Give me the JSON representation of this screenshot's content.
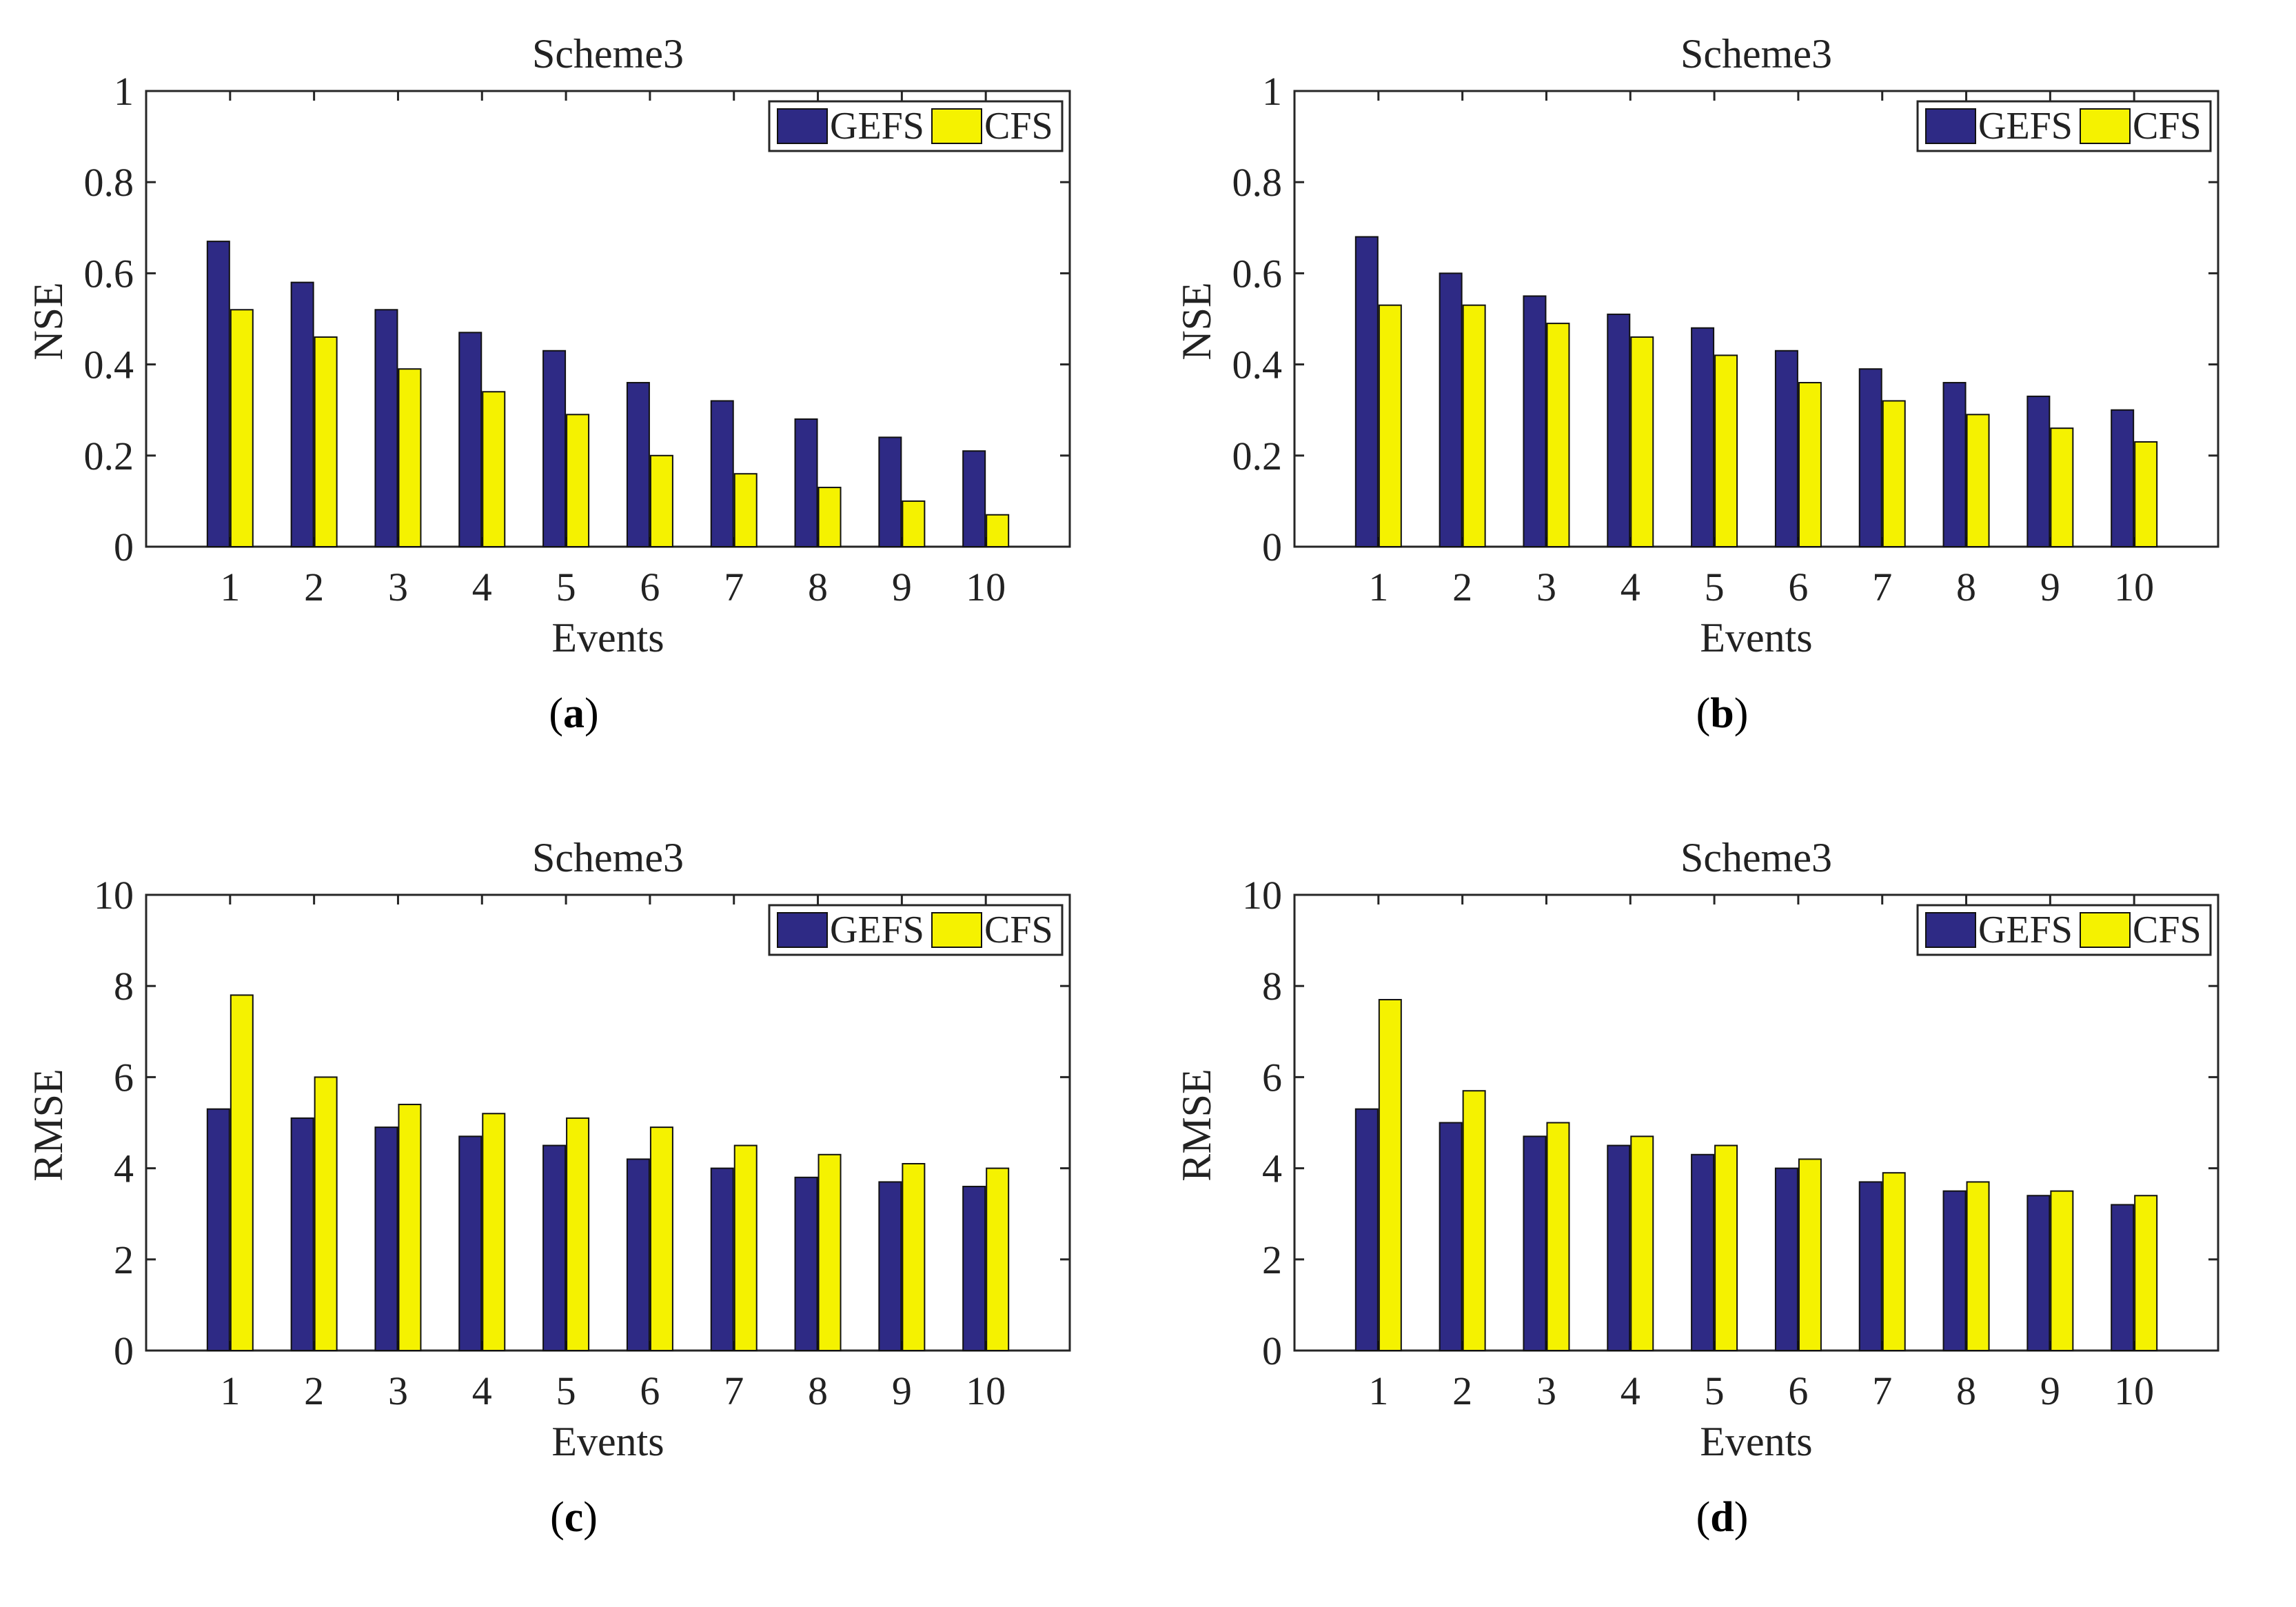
{
  "colors": {
    "gefs": "#2e2a85",
    "cfs": "#f5f200",
    "axis": "#262626",
    "text": "#222222"
  },
  "chart_data": [
    {
      "type": "bar",
      "panel_label": "a",
      "title": "Scheme3",
      "xlabel": "Events",
      "ylabel": "NSE",
      "categories": [
        "1",
        "2",
        "3",
        "4",
        "5",
        "6",
        "7",
        "8",
        "9",
        "10"
      ],
      "ylim": [
        0,
        1
      ],
      "yticks": [
        "0",
        "0.2",
        "0.4",
        "0.6",
        "0.8",
        "1"
      ],
      "yticks_values": [
        0,
        0.2,
        0.4,
        0.6,
        0.8,
        1
      ],
      "legend_position": "top-right",
      "series": [
        {
          "name": "GEFS",
          "values": [
            0.67,
            0.58,
            0.52,
            0.47,
            0.43,
            0.36,
            0.32,
            0.28,
            0.24,
            0.21
          ]
        },
        {
          "name": "CFS",
          "values": [
            0.52,
            0.46,
            0.39,
            0.34,
            0.29,
            0.2,
            0.16,
            0.13,
            0.1,
            0.07
          ]
        }
      ]
    },
    {
      "type": "bar",
      "panel_label": "b",
      "title": "Scheme3",
      "xlabel": "Events",
      "ylabel": "NSE",
      "categories": [
        "1",
        "2",
        "3",
        "4",
        "5",
        "6",
        "7",
        "8",
        "9",
        "10"
      ],
      "ylim": [
        0,
        1
      ],
      "yticks": [
        "0",
        "0.2",
        "0.4",
        "0.6",
        "0.8",
        "1"
      ],
      "yticks_values": [
        0,
        0.2,
        0.4,
        0.6,
        0.8,
        1
      ],
      "legend_position": "top-right",
      "series": [
        {
          "name": "GEFS",
          "values": [
            0.68,
            0.6,
            0.55,
            0.51,
            0.48,
            0.43,
            0.39,
            0.36,
            0.33,
            0.3
          ]
        },
        {
          "name": "CFS",
          "values": [
            0.53,
            0.53,
            0.49,
            0.46,
            0.42,
            0.36,
            0.32,
            0.29,
            0.26,
            0.23
          ]
        }
      ]
    },
    {
      "type": "bar",
      "panel_label": "c",
      "title": "Scheme3",
      "xlabel": "Events",
      "ylabel": "RMSE",
      "categories": [
        "1",
        "2",
        "3",
        "4",
        "5",
        "6",
        "7",
        "8",
        "9",
        "10"
      ],
      "ylim": [
        0,
        10
      ],
      "yticks": [
        "0",
        "2",
        "4",
        "6",
        "8",
        "10"
      ],
      "yticks_values": [
        0,
        2,
        4,
        6,
        8,
        10
      ],
      "legend_position": "top-right",
      "series": [
        {
          "name": "GEFS",
          "values": [
            5.3,
            5.1,
            4.9,
            4.7,
            4.5,
            4.2,
            4.0,
            3.8,
            3.7,
            3.6
          ]
        },
        {
          "name": "CFS",
          "values": [
            7.8,
            6.0,
            5.4,
            5.2,
            5.1,
            4.9,
            4.5,
            4.3,
            4.1,
            4.0
          ]
        }
      ]
    },
    {
      "type": "bar",
      "panel_label": "d",
      "title": "Scheme3",
      "xlabel": "Events",
      "ylabel": "RMSE",
      "categories": [
        "1",
        "2",
        "3",
        "4",
        "5",
        "6",
        "7",
        "8",
        "9",
        "10"
      ],
      "ylim": [
        0,
        10
      ],
      "yticks": [
        "0",
        "2",
        "4",
        "6",
        "8",
        "10"
      ],
      "yticks_values": [
        0,
        2,
        4,
        6,
        8,
        10
      ],
      "legend_position": "top-right",
      "series": [
        {
          "name": "GEFS",
          "values": [
            5.3,
            5.0,
            4.7,
            4.5,
            4.3,
            4.0,
            3.7,
            3.5,
            3.4,
            3.2
          ]
        },
        {
          "name": "CFS",
          "values": [
            7.7,
            5.7,
            5.0,
            4.7,
            4.5,
            4.2,
            3.9,
            3.7,
            3.5,
            3.4
          ]
        }
      ]
    }
  ]
}
